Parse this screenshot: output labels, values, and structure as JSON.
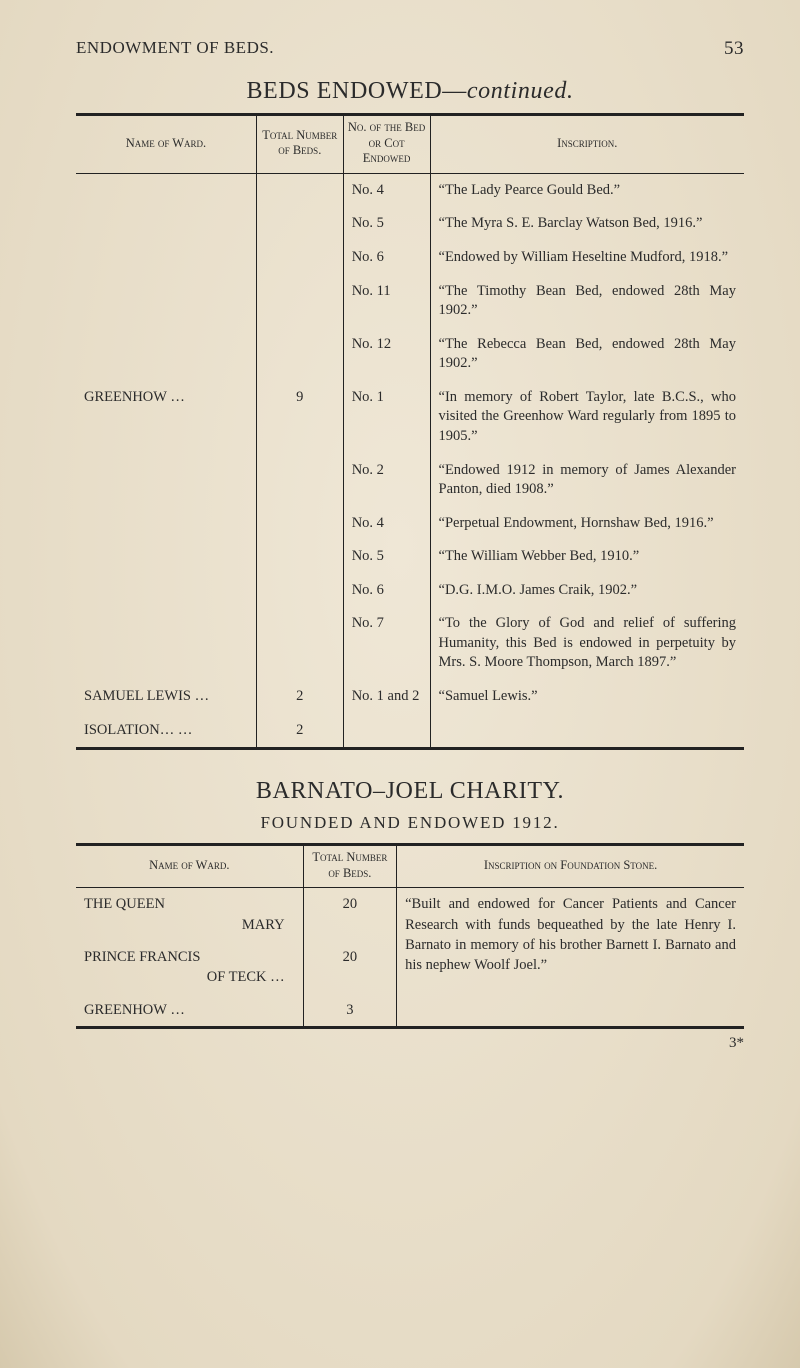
{
  "running": {
    "title": "ENDOWMENT OF BEDS.",
    "page": "53"
  },
  "tables": {
    "beds": {
      "title_pre": "BEDS  ENDOWED—",
      "title_em": "continued.",
      "headers": {
        "ward": "Name of Ward.",
        "number": "Total Number of Beds.",
        "bed": "No. of the Bed or Cot Endowed",
        "insc": "Inscription."
      },
      "rows": [
        {
          "ward": "",
          "num": "",
          "bed": "No. 4",
          "insc": "“The Lady Pearce Gould Bed.”"
        },
        {
          "ward": "",
          "num": "",
          "bed": "No. 5",
          "insc": "“The Myra S. E. Barclay Watson Bed, 1916.”"
        },
        {
          "ward": "",
          "num": "",
          "bed": "No. 6",
          "insc": "“Endowed by William Heseltine Mudford, 1918.”"
        },
        {
          "ward": "",
          "num": "",
          "bed": "No. 11",
          "insc": "“The Timothy Bean Bed, endowed 28th May 1902.”"
        },
        {
          "ward": "",
          "num": "",
          "bed": "No. 12",
          "insc": "“The Rebecca Bean Bed, endowed 28th May 1902.”"
        },
        {
          "ward": "GREENHOW     …",
          "num": "9",
          "bed": "No. 1",
          "insc": "“In memory of Robert Taylor, late B.C.S., who visited the Greenhow Ward regularly from 1895 to 1905.”"
        },
        {
          "ward": "",
          "num": "",
          "bed": "No. 2",
          "insc": "“Endowed 1912 in memory of James Alexander Panton, died 1908.”"
        },
        {
          "ward": "",
          "num": "",
          "bed": "No. 4",
          "insc": "“Perpetual Endowment, Hornshaw Bed, 1916.”"
        },
        {
          "ward": "",
          "num": "",
          "bed": "No. 5",
          "insc": "“The William Webber Bed, 1910.”"
        },
        {
          "ward": "",
          "num": "",
          "bed": "No. 6",
          "insc": "“D.G. I.M.O. James Craik, 1902.”"
        },
        {
          "ward": "",
          "num": "",
          "bed": "No. 7",
          "insc": "“To the Glory of God and relief of suffering Humanity, this Bed is endowed in perpetuity by Mrs. S. Moore Thompson, March 1897.”"
        },
        {
          "ward": "SAMUEL LEWIS …",
          "num": "2",
          "bed": "No. 1 and 2",
          "insc": "“Samuel Lewis.”"
        },
        {
          "ward": "ISOLATION…    …",
          "num": "2",
          "bed": "",
          "insc": ""
        }
      ]
    },
    "barnato": {
      "title": "BARNATO–JOEL  CHARITY.",
      "founded": "FOUNDED AND ENDOWED 1912.",
      "headers": {
        "ward": "Name of Ward.",
        "number": "Total Number of Beds.",
        "insc": "Inscription on Foundation Stone."
      },
      "wards": [
        {
          "name_line1": "THE QUEEN",
          "name_line2": "MARY",
          "num": "20"
        },
        {
          "name_line1": "PRINCE FRANCIS",
          "name_line2": "OF TECK    …",
          "num": "20"
        },
        {
          "name_line1": "GREENHOW     …",
          "name_line2": "",
          "num": "3"
        }
      ],
      "inscription": "“Built and endowed for Cancer Patients and Cancer Research with funds bequeathed by the late Henry I. Barnato in memory of his brother Barnett I. Barnato and his nephew Woolf Joel.”"
    }
  },
  "sigmark": "3*"
}
